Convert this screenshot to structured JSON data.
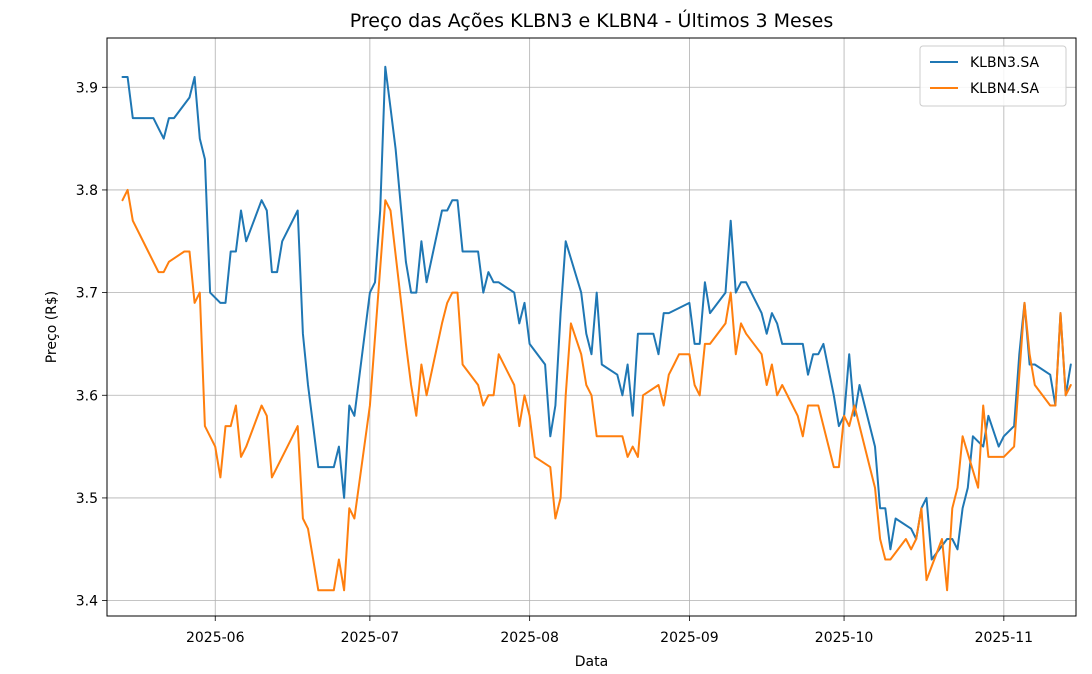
{
  "chart_data": {
    "type": "line",
    "title": "Preço das Ações KLBN3 e KLBN4 - Últimos 3 Meses",
    "xlabel": "Data",
    "ylabel": "Preço (R$)",
    "xlim": [
      "2025-05-11",
      "2025-11-15"
    ],
    "ylim": [
      3.385,
      3.948
    ],
    "x_ticks": [
      "2025-06-01",
      "2025-07-01",
      "2025-08-01",
      "2025-09-01",
      "2025-10-01",
      "2025-11-01"
    ],
    "x_tick_labels": [
      "2025-06",
      "2025-07",
      "2025-08",
      "2025-09",
      "2025-10",
      "2025-11"
    ],
    "y_ticks": [
      3.4,
      3.5,
      3.6,
      3.7,
      3.8,
      3.9
    ],
    "y_tick_labels": [
      "3.4",
      "3.5",
      "3.6",
      "3.7",
      "3.8",
      "3.9"
    ],
    "grid": true,
    "legend_position": "top-right",
    "series": [
      {
        "name": "KLBN3.SA",
        "color": "#1f77b4",
        "points": [
          [
            "2025-05-14",
            3.91
          ],
          [
            "2025-05-15",
            3.91
          ],
          [
            "2025-05-16",
            3.87
          ],
          [
            "2025-05-19",
            3.87
          ],
          [
            "2025-05-20",
            3.87
          ],
          [
            "2025-05-21",
            3.86
          ],
          [
            "2025-05-22",
            3.85
          ],
          [
            "2025-05-23",
            3.87
          ],
          [
            "2025-05-24",
            3.87
          ],
          [
            "2025-05-27",
            3.89
          ],
          [
            "2025-05-28",
            3.91
          ],
          [
            "2025-05-29",
            3.85
          ],
          [
            "2025-05-30",
            3.83
          ],
          [
            "2025-05-31",
            3.7
          ],
          [
            "2025-06-02",
            3.69
          ],
          [
            "2025-06-03",
            3.69
          ],
          [
            "2025-06-04",
            3.74
          ],
          [
            "2025-06-05",
            3.74
          ],
          [
            "2025-06-06",
            3.78
          ],
          [
            "2025-06-07",
            3.75
          ],
          [
            "2025-06-10",
            3.79
          ],
          [
            "2025-06-11",
            3.78
          ],
          [
            "2025-06-12",
            3.72
          ],
          [
            "2025-06-13",
            3.72
          ],
          [
            "2025-06-14",
            3.75
          ],
          [
            "2025-06-17",
            3.78
          ],
          [
            "2025-06-18",
            3.66
          ],
          [
            "2025-06-19",
            3.61
          ],
          [
            "2025-06-20",
            3.57
          ],
          [
            "2025-06-21",
            3.53
          ],
          [
            "2025-06-24",
            3.53
          ],
          [
            "2025-06-25",
            3.55
          ],
          [
            "2025-06-26",
            3.5
          ],
          [
            "2025-06-27",
            3.59
          ],
          [
            "2025-06-28",
            3.58
          ],
          [
            "2025-07-01",
            3.7
          ],
          [
            "2025-07-02",
            3.71
          ],
          [
            "2025-07-03",
            3.78
          ],
          [
            "2025-07-04",
            3.92
          ],
          [
            "2025-07-05",
            3.88
          ],
          [
            "2025-07-06",
            3.84
          ],
          [
            "2025-07-08",
            3.73
          ],
          [
            "2025-07-09",
            3.7
          ],
          [
            "2025-07-10",
            3.7
          ],
          [
            "2025-07-11",
            3.75
          ],
          [
            "2025-07-12",
            3.71
          ],
          [
            "2025-07-15",
            3.78
          ],
          [
            "2025-07-16",
            3.78
          ],
          [
            "2025-07-17",
            3.79
          ],
          [
            "2025-07-18",
            3.79
          ],
          [
            "2025-07-19",
            3.74
          ],
          [
            "2025-07-22",
            3.74
          ],
          [
            "2025-07-23",
            3.7
          ],
          [
            "2025-07-24",
            3.72
          ],
          [
            "2025-07-25",
            3.71
          ],
          [
            "2025-07-26",
            3.71
          ],
          [
            "2025-07-29",
            3.7
          ],
          [
            "2025-07-30",
            3.67
          ],
          [
            "2025-07-31",
            3.69
          ],
          [
            "2025-08-01",
            3.65
          ],
          [
            "2025-08-04",
            3.63
          ],
          [
            "2025-08-05",
            3.56
          ],
          [
            "2025-08-06",
            3.59
          ],
          [
            "2025-08-07",
            3.68
          ],
          [
            "2025-08-08",
            3.75
          ],
          [
            "2025-08-11",
            3.7
          ],
          [
            "2025-08-12",
            3.66
          ],
          [
            "2025-08-13",
            3.64
          ],
          [
            "2025-08-14",
            3.7
          ],
          [
            "2025-08-15",
            3.63
          ],
          [
            "2025-08-18",
            3.62
          ],
          [
            "2025-08-19",
            3.6
          ],
          [
            "2025-08-20",
            3.63
          ],
          [
            "2025-08-21",
            3.58
          ],
          [
            "2025-08-22",
            3.66
          ],
          [
            "2025-08-25",
            3.66
          ],
          [
            "2025-08-26",
            3.64
          ],
          [
            "2025-08-27",
            3.68
          ],
          [
            "2025-08-28",
            3.68
          ],
          [
            "2025-09-01",
            3.69
          ],
          [
            "2025-09-02",
            3.65
          ],
          [
            "2025-09-03",
            3.65
          ],
          [
            "2025-09-04",
            3.71
          ],
          [
            "2025-09-05",
            3.68
          ],
          [
            "2025-09-08",
            3.7
          ],
          [
            "2025-09-09",
            3.77
          ],
          [
            "2025-09-10",
            3.7
          ],
          [
            "2025-09-11",
            3.71
          ],
          [
            "2025-09-12",
            3.71
          ],
          [
            "2025-09-15",
            3.68
          ],
          [
            "2025-09-16",
            3.66
          ],
          [
            "2025-09-17",
            3.68
          ],
          [
            "2025-09-18",
            3.67
          ],
          [
            "2025-09-19",
            3.65
          ],
          [
            "2025-09-22",
            3.65
          ],
          [
            "2025-09-23",
            3.65
          ],
          [
            "2025-09-24",
            3.62
          ],
          [
            "2025-09-25",
            3.64
          ],
          [
            "2025-09-26",
            3.64
          ],
          [
            "2025-09-27",
            3.65
          ],
          [
            "2025-09-29",
            3.6
          ],
          [
            "2025-09-30",
            3.57
          ],
          [
            "2025-10-01",
            3.58
          ],
          [
            "2025-10-02",
            3.64
          ],
          [
            "2025-10-03",
            3.58
          ],
          [
            "2025-10-04",
            3.61
          ],
          [
            "2025-10-07",
            3.55
          ],
          [
            "2025-10-08",
            3.49
          ],
          [
            "2025-10-09",
            3.49
          ],
          [
            "2025-10-10",
            3.45
          ],
          [
            "2025-10-11",
            3.48
          ],
          [
            "2025-10-14",
            3.47
          ],
          [
            "2025-10-15",
            3.46
          ],
          [
            "2025-10-16",
            3.49
          ],
          [
            "2025-10-17",
            3.5
          ],
          [
            "2025-10-18",
            3.44
          ],
          [
            "2025-10-21",
            3.46
          ],
          [
            "2025-10-22",
            3.46
          ],
          [
            "2025-10-23",
            3.45
          ],
          [
            "2025-10-24",
            3.49
          ],
          [
            "2025-10-25",
            3.51
          ],
          [
            "2025-10-26",
            3.56
          ],
          [
            "2025-10-28",
            3.55
          ],
          [
            "2025-10-29",
            3.58
          ],
          [
            "2025-10-31",
            3.55
          ],
          [
            "2025-11-01",
            3.56
          ],
          [
            "2025-11-03",
            3.57
          ],
          [
            "2025-11-04",
            3.64
          ],
          [
            "2025-11-05",
            3.69
          ],
          [
            "2025-11-06",
            3.63
          ],
          [
            "2025-11-07",
            3.63
          ],
          [
            "2025-11-10",
            3.62
          ],
          [
            "2025-11-11",
            3.59
          ],
          [
            "2025-11-12",
            3.68
          ],
          [
            "2025-11-13",
            3.6
          ],
          [
            "2025-11-14",
            3.63
          ]
        ]
      },
      {
        "name": "KLBN4.SA",
        "color": "#ff7f0e",
        "points": [
          [
            "2025-05-14",
            3.79
          ],
          [
            "2025-05-15",
            3.8
          ],
          [
            "2025-05-16",
            3.77
          ],
          [
            "2025-05-19",
            3.74
          ],
          [
            "2025-05-21",
            3.72
          ],
          [
            "2025-05-22",
            3.72
          ],
          [
            "2025-05-23",
            3.73
          ],
          [
            "2025-05-26",
            3.74
          ],
          [
            "2025-05-27",
            3.74
          ],
          [
            "2025-05-28",
            3.69
          ],
          [
            "2025-05-29",
            3.7
          ],
          [
            "2025-05-30",
            3.57
          ],
          [
            "2025-06-01",
            3.55
          ],
          [
            "2025-06-02",
            3.52
          ],
          [
            "2025-06-03",
            3.57
          ],
          [
            "2025-06-04",
            3.57
          ],
          [
            "2025-06-05",
            3.59
          ],
          [
            "2025-06-06",
            3.54
          ],
          [
            "2025-06-07",
            3.55
          ],
          [
            "2025-06-10",
            3.59
          ],
          [
            "2025-06-11",
            3.58
          ],
          [
            "2025-06-12",
            3.52
          ],
          [
            "2025-06-16",
            3.56
          ],
          [
            "2025-06-17",
            3.57
          ],
          [
            "2025-06-18",
            3.48
          ],
          [
            "2025-06-19",
            3.47
          ],
          [
            "2025-06-20",
            3.44
          ],
          [
            "2025-06-21",
            3.41
          ],
          [
            "2025-06-24",
            3.41
          ],
          [
            "2025-06-25",
            3.44
          ],
          [
            "2025-06-26",
            3.41
          ],
          [
            "2025-06-27",
            3.49
          ],
          [
            "2025-06-28",
            3.48
          ],
          [
            "2025-07-01",
            3.59
          ],
          [
            "2025-07-04",
            3.79
          ],
          [
            "2025-07-05",
            3.78
          ],
          [
            "2025-07-08",
            3.65
          ],
          [
            "2025-07-09",
            3.61
          ],
          [
            "2025-07-10",
            3.58
          ],
          [
            "2025-07-11",
            3.63
          ],
          [
            "2025-07-12",
            3.6
          ],
          [
            "2025-07-15",
            3.67
          ],
          [
            "2025-07-16",
            3.69
          ],
          [
            "2025-07-17",
            3.7
          ],
          [
            "2025-07-18",
            3.7
          ],
          [
            "2025-07-19",
            3.63
          ],
          [
            "2025-07-22",
            3.61
          ],
          [
            "2025-07-23",
            3.59
          ],
          [
            "2025-07-24",
            3.6
          ],
          [
            "2025-07-25",
            3.6
          ],
          [
            "2025-07-26",
            3.64
          ],
          [
            "2025-07-29",
            3.61
          ],
          [
            "2025-07-30",
            3.57
          ],
          [
            "2025-07-31",
            3.6
          ],
          [
            "2025-08-01",
            3.58
          ],
          [
            "2025-08-02",
            3.54
          ],
          [
            "2025-08-05",
            3.53
          ],
          [
            "2025-08-06",
            3.48
          ],
          [
            "2025-08-07",
            3.5
          ],
          [
            "2025-08-08",
            3.6
          ],
          [
            "2025-08-09",
            3.67
          ],
          [
            "2025-08-11",
            3.64
          ],
          [
            "2025-08-12",
            3.61
          ],
          [
            "2025-08-13",
            3.6
          ],
          [
            "2025-08-14",
            3.56
          ],
          [
            "2025-08-15",
            3.56
          ],
          [
            "2025-08-18",
            3.56
          ],
          [
            "2025-08-19",
            3.56
          ],
          [
            "2025-08-20",
            3.54
          ],
          [
            "2025-08-21",
            3.55
          ],
          [
            "2025-08-22",
            3.54
          ],
          [
            "2025-08-23",
            3.6
          ],
          [
            "2025-08-26",
            3.61
          ],
          [
            "2025-08-27",
            3.59
          ],
          [
            "2025-08-28",
            3.62
          ],
          [
            "2025-08-29",
            3.63
          ],
          [
            "2025-08-30",
            3.64
          ],
          [
            "2025-09-01",
            3.64
          ],
          [
            "2025-09-02",
            3.61
          ],
          [
            "2025-09-03",
            3.6
          ],
          [
            "2025-09-04",
            3.65
          ],
          [
            "2025-09-05",
            3.65
          ],
          [
            "2025-09-08",
            3.67
          ],
          [
            "2025-09-09",
            3.7
          ],
          [
            "2025-09-10",
            3.64
          ],
          [
            "2025-09-11",
            3.67
          ],
          [
            "2025-09-12",
            3.66
          ],
          [
            "2025-09-15",
            3.64
          ],
          [
            "2025-09-16",
            3.61
          ],
          [
            "2025-09-17",
            3.63
          ],
          [
            "2025-09-18",
            3.6
          ],
          [
            "2025-09-19",
            3.61
          ],
          [
            "2025-09-22",
            3.58
          ],
          [
            "2025-09-23",
            3.56
          ],
          [
            "2025-09-24",
            3.59
          ],
          [
            "2025-09-25",
            3.59
          ],
          [
            "2025-09-26",
            3.59
          ],
          [
            "2025-09-29",
            3.53
          ],
          [
            "2025-09-30",
            3.53
          ],
          [
            "2025-10-01",
            3.58
          ],
          [
            "2025-10-02",
            3.57
          ],
          [
            "2025-10-03",
            3.59
          ],
          [
            "2025-10-06",
            3.53
          ],
          [
            "2025-10-07",
            3.51
          ],
          [
            "2025-10-08",
            3.46
          ],
          [
            "2025-10-09",
            3.44
          ],
          [
            "2025-10-10",
            3.44
          ],
          [
            "2025-10-13",
            3.46
          ],
          [
            "2025-10-14",
            3.45
          ],
          [
            "2025-10-15",
            3.46
          ],
          [
            "2025-10-16",
            3.49
          ],
          [
            "2025-10-17",
            3.42
          ],
          [
            "2025-10-20",
            3.46
          ],
          [
            "2025-10-21",
            3.41
          ],
          [
            "2025-10-22",
            3.49
          ],
          [
            "2025-10-23",
            3.51
          ],
          [
            "2025-10-24",
            3.56
          ],
          [
            "2025-10-27",
            3.51
          ],
          [
            "2025-10-28",
            3.59
          ],
          [
            "2025-10-29",
            3.54
          ],
          [
            "2025-10-31",
            3.54
          ],
          [
            "2025-11-01",
            3.54
          ],
          [
            "2025-11-03",
            3.55
          ],
          [
            "2025-11-05",
            3.69
          ],
          [
            "2025-11-06",
            3.64
          ],
          [
            "2025-11-07",
            3.61
          ],
          [
            "2025-11-10",
            3.59
          ],
          [
            "2025-11-11",
            3.59
          ],
          [
            "2025-11-12",
            3.68
          ],
          [
            "2025-11-13",
            3.6
          ],
          [
            "2025-11-14",
            3.61
          ]
        ]
      }
    ]
  }
}
